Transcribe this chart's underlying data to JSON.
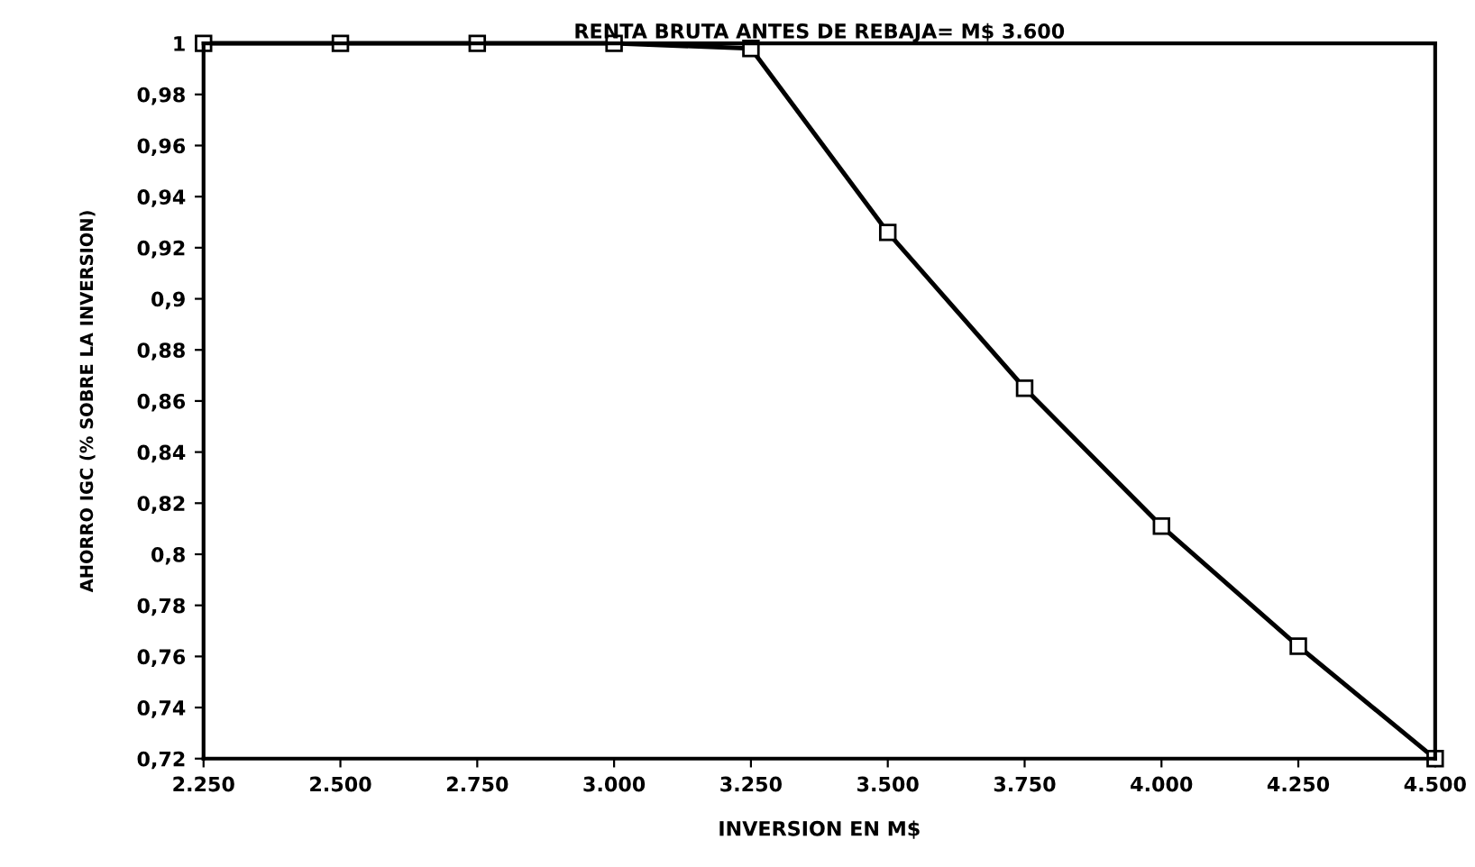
{
  "chart_data": {
    "type": "line",
    "title": "RENTA BRUTA ANTES DE REBAJA= M$ 3.600",
    "xlabel": "INVERSION EN M$",
    "ylabel": "AHORRO IGC (% SOBRE LA INVERSION)",
    "x": [
      2250,
      2500,
      2750,
      3000,
      3250,
      3500,
      3750,
      4000,
      4250,
      4500
    ],
    "series": [
      {
        "color": "#000000",
        "values": [
          1,
          1,
          1,
          1,
          0.998,
          0.926,
          0.865,
          0.811,
          0.764,
          0.72
        ]
      }
    ],
    "marker": "square",
    "line_style": "solid",
    "grid": false,
    "xlim": [
      2250,
      4500
    ],
    "xticks": [
      {
        "value": 2250,
        "label": "2.250"
      },
      {
        "value": 2500,
        "label": "2.500"
      },
      {
        "value": 2750,
        "label": "2.750"
      },
      {
        "value": 3000,
        "label": "3.000"
      },
      {
        "value": 3250,
        "label": "3.250"
      },
      {
        "value": 3500,
        "label": "3.500"
      },
      {
        "value": 3750,
        "label": "3.750"
      },
      {
        "value": 4000,
        "label": "4.000"
      },
      {
        "value": 4250,
        "label": "4.250"
      },
      {
        "value": 4500,
        "label": "4.500"
      }
    ],
    "ylim": [
      0.72,
      1
    ],
    "yticks": [
      {
        "value": 0.72,
        "label": "0,72"
      },
      {
        "value": 0.74,
        "label": "0,74"
      },
      {
        "value": 0.76,
        "label": "0,76"
      },
      {
        "value": 0.78,
        "label": "0,78"
      },
      {
        "value": 0.8,
        "label": "0,8"
      },
      {
        "value": 0.82,
        "label": "0,82"
      },
      {
        "value": 0.84,
        "label": "0,84"
      },
      {
        "value": 0.86,
        "label": "0,86"
      },
      {
        "value": 0.88,
        "label": "0,88"
      },
      {
        "value": 0.9,
        "label": "0,9"
      },
      {
        "value": 0.92,
        "label": "0,92"
      },
      {
        "value": 0.94,
        "label": "0,94"
      },
      {
        "value": 0.96,
        "label": "0,96"
      },
      {
        "value": 0.98,
        "label": "0,98"
      },
      {
        "value": 1,
        "label": "1"
      }
    ]
  }
}
